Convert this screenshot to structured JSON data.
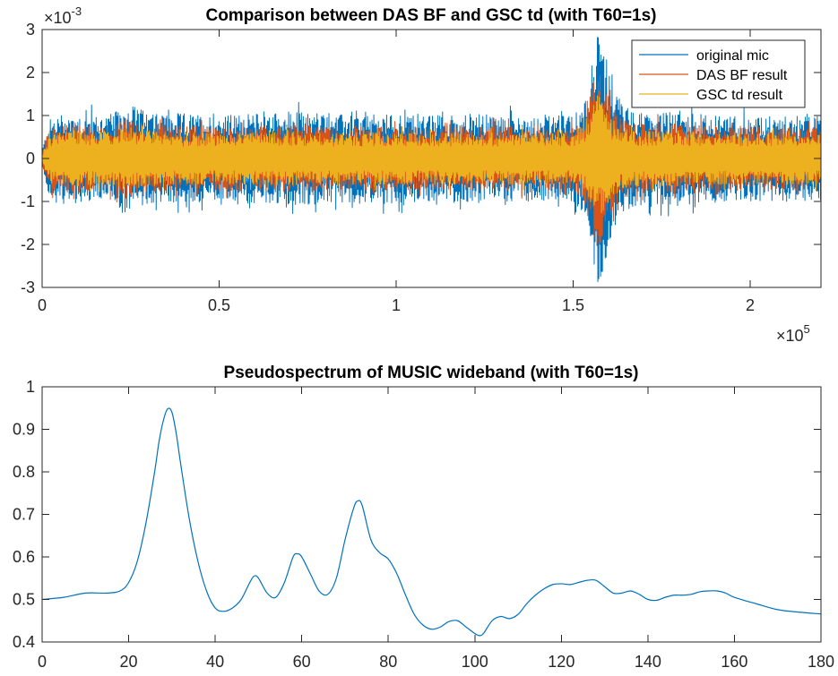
{
  "chart_data": [
    {
      "type": "line",
      "title": "Comparison between DAS BF and GSC td (with T60=1s)",
      "xlabel": "",
      "ylabel": "",
      "xlim": [
        0,
        2.2
      ],
      "ylim": [
        -3,
        3
      ],
      "x_ticks": [
        "0",
        "0.5",
        "1",
        "1.5",
        "2"
      ],
      "y_ticks": [
        "-3",
        "-2",
        "-1",
        "0",
        "1",
        "2",
        "3"
      ],
      "x_exponent": {
        "base": "×10",
        "power": "5"
      },
      "y_exponent": {
        "base": "×10",
        "power": "-3"
      },
      "grid": false,
      "legend_position": "top-right",
      "series": [
        {
          "name": "original mic",
          "color": "#0072BD",
          "x": [
            0,
            0.02,
            0.05,
            0.1,
            0.15,
            0.2,
            0.25,
            0.3,
            0.4,
            0.5,
            0.6,
            0.7,
            0.8,
            0.9,
            1.0,
            1.1,
            1.2,
            1.3,
            1.4,
            1.5,
            1.53,
            1.55,
            1.57,
            1.59,
            1.61,
            1.65,
            1.7,
            1.8,
            1.9,
            2.0,
            2.1,
            2.2
          ],
          "envelope": [
            0.2,
            0.9,
            1.05,
            1.05,
            1.0,
            1.05,
            1.3,
            1.05,
            1.05,
            1.0,
            1.05,
            1.1,
            1.05,
            1.0,
            1.05,
            1.0,
            1.05,
            1.0,
            1.0,
            1.0,
            1.3,
            2.3,
            2.9,
            2.5,
            1.7,
            1.2,
            1.05,
            1.1,
            1.0,
            1.0,
            1.0,
            1.0
          ]
        },
        {
          "name": "DAS BF result",
          "color": "#D95319",
          "x": [
            0,
            0.02,
            0.05,
            0.1,
            0.15,
            0.2,
            0.25,
            0.3,
            0.4,
            0.5,
            0.6,
            0.7,
            0.8,
            0.9,
            1.0,
            1.1,
            1.2,
            1.3,
            1.4,
            1.5,
            1.53,
            1.55,
            1.57,
            1.59,
            1.61,
            1.65,
            1.7,
            1.8,
            1.9,
            2.0,
            2.1,
            2.2
          ],
          "envelope": [
            0.15,
            0.7,
            0.8,
            0.8,
            0.75,
            0.8,
            1.0,
            0.8,
            0.75,
            0.75,
            0.75,
            0.8,
            0.75,
            0.75,
            0.75,
            0.75,
            0.75,
            0.75,
            0.75,
            0.75,
            1.0,
            1.7,
            2.1,
            1.8,
            1.2,
            0.9,
            0.8,
            0.85,
            0.75,
            0.75,
            0.75,
            0.75
          ]
        },
        {
          "name": "GSC td result",
          "color": "#EDB120",
          "x": [
            0,
            0.02,
            0.05,
            0.1,
            0.15,
            0.2,
            0.25,
            0.3,
            0.4,
            0.5,
            0.6,
            0.7,
            0.8,
            0.9,
            1.0,
            1.1,
            1.2,
            1.3,
            1.4,
            1.5,
            1.53,
            1.55,
            1.57,
            1.59,
            1.61,
            1.65,
            1.7,
            1.8,
            1.9,
            2.0,
            2.1,
            2.2
          ],
          "envelope": [
            0.1,
            0.55,
            0.65,
            0.65,
            0.62,
            0.65,
            0.75,
            0.65,
            0.6,
            0.6,
            0.6,
            0.62,
            0.6,
            0.6,
            0.6,
            0.6,
            0.6,
            0.6,
            0.6,
            0.6,
            0.8,
            1.2,
            1.5,
            1.25,
            0.9,
            0.7,
            0.62,
            0.65,
            0.6,
            0.6,
            0.6,
            0.6
          ]
        }
      ]
    },
    {
      "type": "line",
      "title": "Pseudospectrum of MUSIC wideband (with T60=1s)",
      "xlabel": "",
      "ylabel": "",
      "xlim": [
        0,
        180
      ],
      "ylim": [
        0.4,
        1
      ],
      "x_ticks": [
        "0",
        "20",
        "40",
        "60",
        "80",
        "100",
        "120",
        "140",
        "160",
        "180"
      ],
      "y_ticks": [
        "0.4",
        "0.5",
        "0.6",
        "0.7",
        "0.8",
        "0.9",
        "1"
      ],
      "grid": false,
      "series": [
        {
          "color": "#0072BD",
          "x": [
            0,
            5,
            10,
            15,
            18,
            20,
            22,
            24,
            26,
            27,
            28,
            29,
            30,
            31,
            32,
            34,
            36,
            38,
            40,
            42,
            44,
            46,
            48,
            49,
            50,
            52,
            54,
            56,
            58,
            59,
            60,
            62,
            64,
            66,
            68,
            70,
            72,
            73,
            74,
            76,
            78,
            80,
            82,
            84,
            86,
            88,
            90,
            92,
            94,
            96,
            98,
            100,
            101,
            102,
            104,
            106,
            108,
            110,
            112,
            114,
            116,
            118,
            120,
            122,
            124,
            126,
            128,
            130,
            132,
            134,
            136,
            138,
            140,
            142,
            144,
            146,
            148,
            150,
            152,
            154,
            156,
            158,
            160,
            165,
            170,
            175,
            180
          ],
          "y": [
            0.5,
            0.505,
            0.515,
            0.515,
            0.52,
            0.54,
            0.59,
            0.68,
            0.8,
            0.87,
            0.92,
            0.948,
            0.94,
            0.89,
            0.82,
            0.69,
            0.59,
            0.52,
            0.48,
            0.472,
            0.48,
            0.5,
            0.54,
            0.555,
            0.55,
            0.515,
            0.505,
            0.54,
            0.6,
            0.607,
            0.6,
            0.56,
            0.52,
            0.512,
            0.55,
            0.64,
            0.715,
            0.732,
            0.72,
            0.64,
            0.61,
            0.595,
            0.56,
            0.51,
            0.465,
            0.44,
            0.43,
            0.435,
            0.448,
            0.45,
            0.435,
            0.42,
            0.415,
            0.42,
            0.45,
            0.46,
            0.455,
            0.465,
            0.49,
            0.51,
            0.525,
            0.535,
            0.537,
            0.535,
            0.54,
            0.545,
            0.545,
            0.53,
            0.515,
            0.515,
            0.52,
            0.512,
            0.5,
            0.498,
            0.505,
            0.51,
            0.51,
            0.512,
            0.518,
            0.52,
            0.52,
            0.515,
            0.505,
            0.49,
            0.476,
            0.47,
            0.466
          ]
        }
      ]
    }
  ]
}
